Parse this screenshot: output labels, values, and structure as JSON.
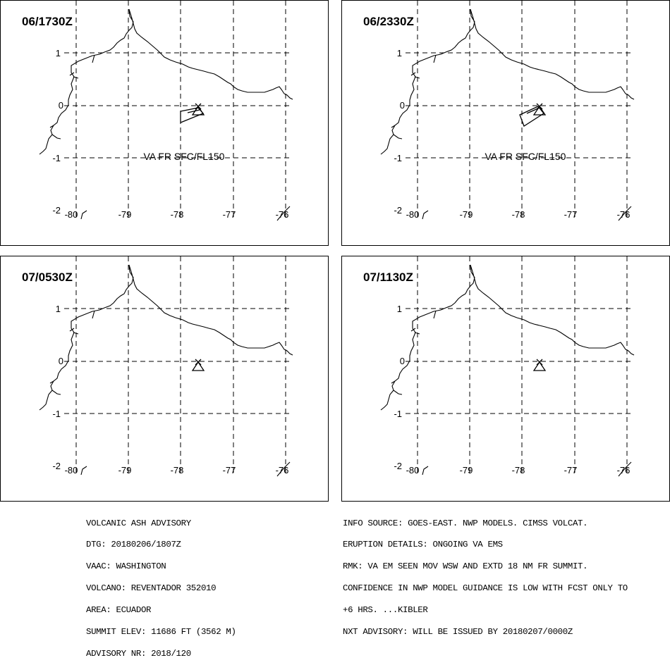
{
  "panels": [
    {
      "valid_time": "06/1730Z",
      "label": "VA FR SFC/FL150"
    },
    {
      "valid_time": "06/2330Z",
      "label": "VA FR SFC/FL150"
    },
    {
      "valid_time": "07/0530Z",
      "label": ""
    },
    {
      "valid_time": "07/1130Z",
      "label": ""
    }
  ],
  "axes": {
    "lat_ticks": [
      "1",
      "0",
      "-1",
      "-2"
    ],
    "lon_ticks": [
      "-80",
      "-79",
      "-78",
      "-77",
      "-76"
    ]
  },
  "advisory": {
    "title": "VOLCANIC ASH ADVISORY",
    "dtg": "DTG: 20180206/1807Z",
    "vaac": "VAAC: WASHINGTON",
    "volcano": "VOLCANO: REVENTADOR 352010",
    "area": "AREA: ECUADOR",
    "summit": "SUMMIT ELEV: 11686 FT (3562 M)",
    "advisory_nr": "ADVISORY NR: 2018/120"
  },
  "remarks": {
    "info_source": "INFO SOURCE: GOES-EAST. NWP MODELS. CIMSS VOLCAT.",
    "eruption": "ERUPTION DETAILS: ONGOING VA EMS",
    "rmk": "RMK: VA EM SEEN MOV WSW AND EXTD 18 NM FR SUMMIT.",
    "confidence": "CONFIDENCE IN NWP MODEL GUIDANCE IS LOW WITH FCST ONLY TO",
    "plus6": "+6 HRS. ...KIBLER",
    "next": "NXT ADVISORY: WILL BE ISSUED BY 20180207/0000Z"
  }
}
